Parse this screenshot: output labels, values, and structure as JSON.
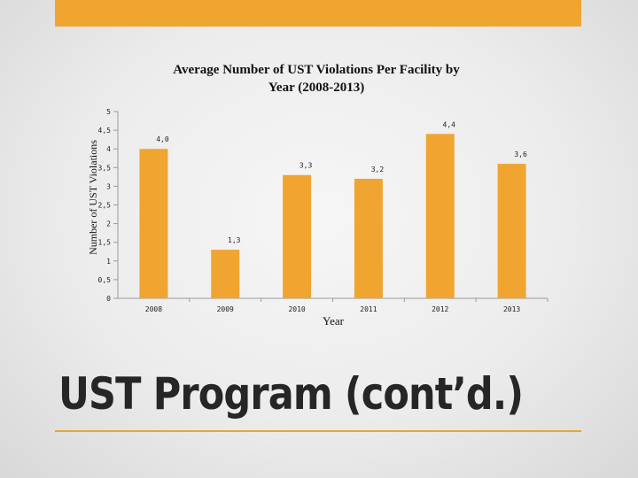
{
  "slide": {
    "title": "UST Program (cont’d.)",
    "accent_color": "#f0a530"
  },
  "chart_data": {
    "type": "bar",
    "title": "Average Number of UST Violations Per Facility by Year (2008-2013)",
    "title_lines": [
      "Average Number of UST Violations Per Facility by",
      "Year (2008-2013)"
    ],
    "xlabel": "Year",
    "ylabel": "Number of UST Violations",
    "categories": [
      "2008",
      "2009",
      "2010",
      "2011",
      "2012",
      "2013"
    ],
    "values": [
      4.0,
      1.3,
      3.3,
      3.2,
      4.4,
      3.6
    ],
    "data_labels": [
      "4,0",
      "1,3",
      "3,3",
      "3,2",
      "4,4",
      "3,6"
    ],
    "yticks": [
      0,
      0.5,
      1,
      1.5,
      2,
      2.5,
      3,
      3.5,
      4,
      4.5,
      5
    ],
    "ytick_labels": [
      "0",
      "0,5",
      "1",
      "1,5",
      "2",
      "2,5",
      "3",
      "3,5",
      "4",
      "4,5",
      "5"
    ],
    "ylim": [
      0,
      5
    ],
    "grid": false,
    "bar_color": "#f0a530"
  }
}
